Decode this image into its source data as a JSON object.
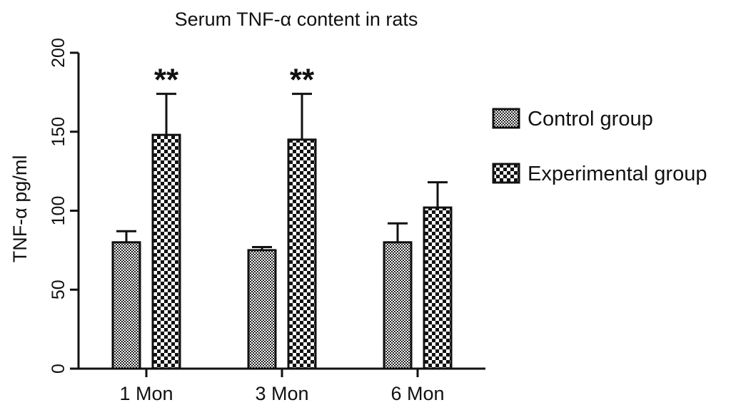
{
  "chart_data": {
    "type": "bar",
    "title": "Serum TNF-α content in rats",
    "xlabel": "",
    "ylabel": "TNF-α pg/ml",
    "ylim": [
      0,
      200
    ],
    "yticks": [
      0,
      50,
      100,
      150,
      200
    ],
    "categories": [
      "1 Mon",
      "3 Mon",
      "6 Mon"
    ],
    "series": [
      {
        "name": "Control group",
        "values": [
          80,
          75,
          80
        ],
        "errors": [
          7,
          2,
          12
        ],
        "pattern": "fine-checker"
      },
      {
        "name": "Experimental group",
        "values": [
          148,
          145,
          102
        ],
        "errors": [
          26,
          29,
          16
        ],
        "pattern": "coarse-checker"
      }
    ],
    "annotations": [
      {
        "category": "1 Mon",
        "series": "Experimental group",
        "text": "**"
      },
      {
        "category": "3 Mon",
        "series": "Experimental group",
        "text": "**"
      }
    ],
    "grid": false,
    "legend_position": "right"
  },
  "colors": {
    "axis": "#111111",
    "pattern_dark": "#111111",
    "pattern_light": "#ffffff"
  }
}
